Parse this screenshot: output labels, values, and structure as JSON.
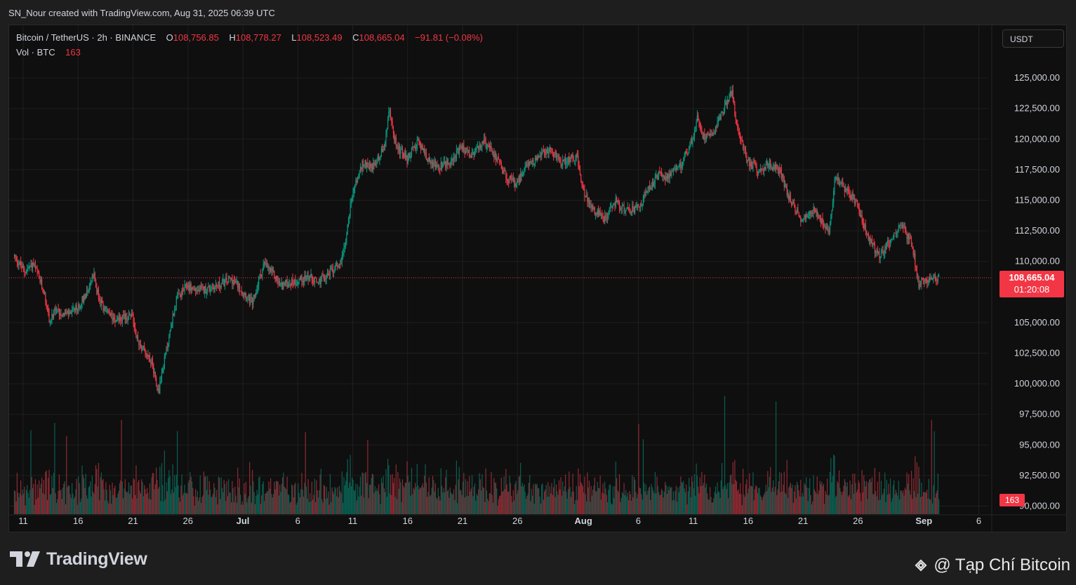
{
  "header": {
    "attribution": "SN_Nour created with TradingView.com, Aug 31, 2025 06:39 UTC"
  },
  "legend": {
    "symbol": "Bitcoin / TetherUS · 2h · BINANCE",
    "open_label": "O",
    "open": "108,756.85",
    "high_label": "H",
    "high": "108,778.27",
    "low_label": "L",
    "low": "108,523.49",
    "close_label": "C",
    "close": "108,665.04",
    "change": "−91.81 (−0.08%)",
    "volume_label": "Vol · BTC",
    "volume": "163"
  },
  "currency_button": "USDT",
  "footer": {
    "brand": "TradingView",
    "watermark": "@ Tạp Chí Bitcoin"
  },
  "colors": {
    "up": "#089981",
    "down": "#f23645",
    "background": "#0f0f0f",
    "grid": "#1f1f1f"
  },
  "chart_data": {
    "type": "candlestick",
    "y_ticks": [
      "125,000.00",
      "122,500.00",
      "120,000.00",
      "117,500.00",
      "115,000.00",
      "112,500.00",
      "110,000.00",
      "105,000.00",
      "102,500.00",
      "100,000.00",
      "97,500.00",
      "95,000.00",
      "92,500.00",
      "90,000.00"
    ],
    "y_tick_values": [
      125000,
      122500,
      120000,
      117500,
      115000,
      112500,
      110000,
      105000,
      102500,
      100000,
      97500,
      95000,
      92500,
      90000
    ],
    "ylim": [
      89400,
      127700
    ],
    "x_ticks": [
      {
        "label": "11",
        "day": 11,
        "bold": false
      },
      {
        "label": "16",
        "day": 16,
        "bold": false
      },
      {
        "label": "21",
        "day": 21,
        "bold": false
      },
      {
        "label": "26",
        "day": 26,
        "bold": false
      },
      {
        "label": "Jul",
        "day": 31,
        "bold": true
      },
      {
        "label": "6",
        "day": 36,
        "bold": false
      },
      {
        "label": "11",
        "day": 41,
        "bold": false
      },
      {
        "label": "16",
        "day": 46,
        "bold": false
      },
      {
        "label": "21",
        "day": 51,
        "bold": false
      },
      {
        "label": "26",
        "day": 56,
        "bold": false
      },
      {
        "label": "Aug",
        "day": 62,
        "bold": true
      },
      {
        "label": "6",
        "day": 67,
        "bold": false
      },
      {
        "label": "11",
        "day": 72,
        "bold": false
      },
      {
        "label": "16",
        "day": 77,
        "bold": false
      },
      {
        "label": "21",
        "day": 82,
        "bold": false
      },
      {
        "label": "26",
        "day": 87,
        "bold": false
      },
      {
        "label": "Sep",
        "day": 93,
        "bold": true
      },
      {
        "label": "6",
        "day": 98,
        "bold": false
      }
    ],
    "price_path": [
      [
        10.2,
        110500
      ],
      [
        11.2,
        109200
      ],
      [
        12,
        109800
      ],
      [
        13,
        107500
      ],
      [
        13.5,
        105000
      ],
      [
        14,
        106000
      ],
      [
        15,
        105700
      ],
      [
        16,
        106100
      ],
      [
        17,
        107800
      ],
      [
        17.5,
        108900
      ],
      [
        18,
        106800
      ],
      [
        19,
        105500
      ],
      [
        20,
        105300
      ],
      [
        21,
        105600
      ],
      [
        21.5,
        103500
      ],
      [
        22,
        102900
      ],
      [
        22.8,
        101800
      ],
      [
        23.4,
        99300
      ],
      [
        23.8,
        101300
      ],
      [
        24.5,
        104500
      ],
      [
        25,
        106800
      ],
      [
        26,
        108000
      ],
      [
        27,
        107600
      ],
      [
        28,
        107800
      ],
      [
        29,
        108100
      ],
      [
        30,
        108600
      ],
      [
        31,
        107700
      ],
      [
        32,
        106500
      ],
      [
        32.5,
        108400
      ],
      [
        33,
        109800
      ],
      [
        34,
        108800
      ],
      [
        34.5,
        108000
      ],
      [
        35,
        108200
      ],
      [
        36,
        108400
      ],
      [
        37,
        108800
      ],
      [
        38,
        108300
      ],
      [
        39,
        109100
      ],
      [
        40,
        110000
      ],
      [
        40.5,
        112000
      ],
      [
        41,
        115500
      ],
      [
        42,
        118000
      ],
      [
        43,
        117800
      ],
      [
        44,
        119500
      ],
      [
        44.4,
        122300
      ],
      [
        45,
        119600
      ],
      [
        46,
        118300
      ],
      [
        47,
        119800
      ],
      [
        48,
        118200
      ],
      [
        49,
        117700
      ],
      [
        50,
        118200
      ],
      [
        51,
        119300
      ],
      [
        52,
        118600
      ],
      [
        53,
        119800
      ],
      [
        54,
        118800
      ],
      [
        55,
        117000
      ],
      [
        56,
        116300
      ],
      [
        57,
        118000
      ],
      [
        58,
        118500
      ],
      [
        59,
        119200
      ],
      [
        60,
        118100
      ],
      [
        61,
        118500
      ],
      [
        61.5,
        118600
      ],
      [
        62,
        115800
      ],
      [
        63,
        114200
      ],
      [
        64,
        113500
      ],
      [
        65,
        114900
      ],
      [
        66,
        114100
      ],
      [
        67,
        114300
      ],
      [
        67.5,
        114900
      ],
      [
        68,
        115900
      ],
      [
        69,
        117100
      ],
      [
        70,
        116900
      ],
      [
        71,
        118000
      ],
      [
        72,
        119900
      ],
      [
        72.5,
        121800
      ],
      [
        73,
        120200
      ],
      [
        74,
        120800
      ],
      [
        75,
        122800
      ],
      [
        75.6,
        124000
      ],
      [
        76,
        121200
      ],
      [
        77,
        118200
      ],
      [
        78,
        117500
      ],
      [
        79,
        118000
      ],
      [
        80,
        117400
      ],
      [
        81,
        114700
      ],
      [
        82,
        113400
      ],
      [
        83,
        114300
      ],
      [
        84,
        113100
      ],
      [
        84.5,
        112600
      ],
      [
        85,
        117000
      ],
      [
        86,
        115800
      ],
      [
        87,
        114700
      ],
      [
        88,
        112000
      ],
      [
        89,
        110400
      ],
      [
        90,
        111700
      ],
      [
        91,
        113000
      ],
      [
        92,
        111400
      ],
      [
        92.6,
        108200
      ],
      [
        93,
        108500
      ],
      [
        94,
        108600
      ],
      [
        94.4,
        108665
      ]
    ],
    "last_price_label": "108,665.04",
    "countdown": "01:20:08",
    "volume_label": "163",
    "volume_axis_max": 1400
  }
}
